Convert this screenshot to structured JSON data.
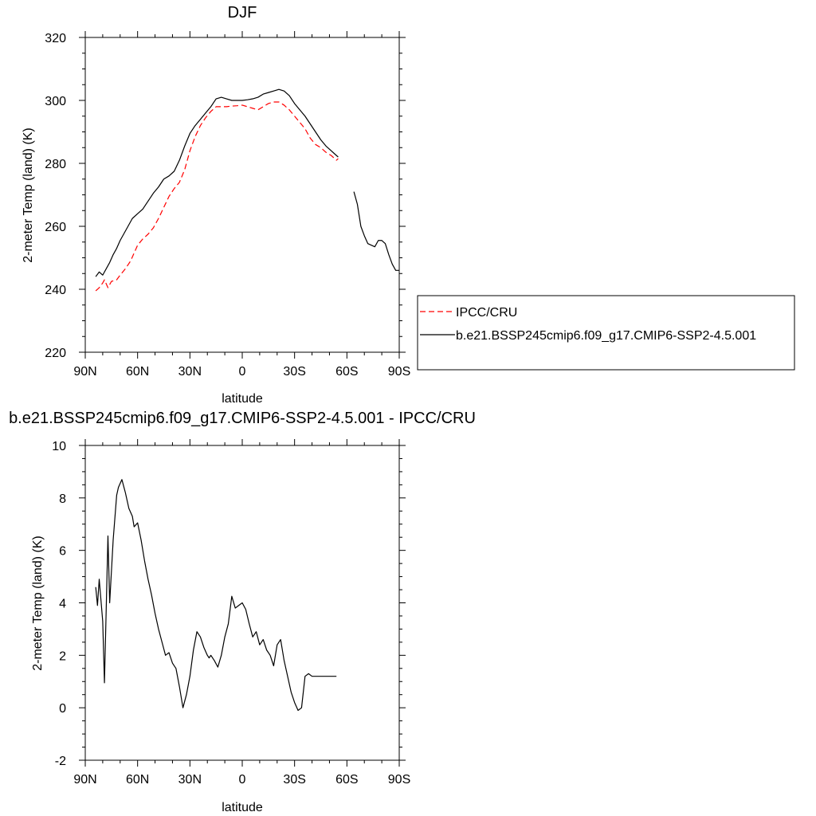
{
  "chart_data": [
    {
      "type": "line",
      "title": "DJF",
      "xlabel": "latitude",
      "ylabel": "2-meter Temp (land) (K)",
      "xlim": [
        -90,
        90
      ],
      "ylim": [
        220,
        320
      ],
      "x_ticks": [
        -90,
        -60,
        -30,
        0,
        30,
        60,
        90
      ],
      "x_tick_labels": [
        "90N",
        "60N",
        "30N",
        "0",
        "30S",
        "60S",
        "90S"
      ],
      "y_ticks": [
        220,
        240,
        260,
        280,
        300,
        320
      ],
      "y_tick_labels": [
        "220",
        "240",
        "260",
        "280",
        "300",
        "320"
      ],
      "legend_position": "right",
      "grid": false,
      "series": [
        {
          "name": "IPCC/CRU",
          "color": "#ff0000",
          "dash": "dashed",
          "x": [
            -84,
            -82,
            -80,
            -79,
            -77,
            -75,
            -72,
            -70,
            -67,
            -64,
            -62,
            -60,
            -57,
            -54,
            -51,
            -48,
            -45,
            -42,
            -39,
            -36,
            -33,
            -30,
            -27,
            -24,
            -21,
            -18,
            -15,
            -12,
            -9,
            -6,
            -3,
            0,
            3,
            6,
            9,
            12,
            15,
            18,
            21,
            24,
            27,
            30,
            33,
            36,
            39,
            42,
            45,
            48,
            51,
            54,
            55
          ],
          "y": [
            239.5,
            240.5,
            242,
            243,
            240.5,
            242.5,
            243,
            244.5,
            246.5,
            249,
            251.5,
            254,
            256,
            257.5,
            259.5,
            262.5,
            266,
            269.5,
            272,
            274,
            278,
            284,
            288.5,
            292,
            294.5,
            296.5,
            298,
            298,
            298,
            298.2,
            298.3,
            298.5,
            298,
            297.5,
            297,
            298,
            299,
            299.5,
            299.5,
            298.5,
            297,
            295,
            293,
            291,
            288,
            286,
            285,
            283.5,
            282.5,
            281,
            281.5
          ]
        },
        {
          "name": "b.e21.BSSP245cmip6.f09_g17.CMIP6-SSP2-4.5.001",
          "color": "#000000",
          "dash": "solid",
          "x": [
            -84,
            -82,
            -80,
            -78,
            -76,
            -74,
            -72,
            -70,
            -68,
            -66,
            -63,
            -60,
            -57,
            -54,
            -51,
            -48,
            -45,
            -42,
            -39,
            -36,
            -33,
            -30,
            -27,
            -24,
            -21,
            -18,
            -15,
            -12,
            -9,
            -6,
            -3,
            0,
            3,
            6,
            9,
            12,
            15,
            18,
            21,
            24,
            27,
            30,
            33,
            36,
            39,
            42,
            45,
            48,
            51,
            54,
            55,
            null,
            64,
            66,
            68,
            70,
            72,
            74,
            76,
            78,
            80,
            82,
            84,
            86,
            88,
            90
          ],
          "y": [
            244,
            245.5,
            244.5,
            246.5,
            248.5,
            251,
            253,
            255.5,
            257.5,
            259.5,
            262.5,
            264,
            265.5,
            268,
            270.5,
            272.5,
            275,
            276,
            277.5,
            281,
            285.5,
            289.5,
            292,
            294,
            296,
            298,
            300.5,
            301,
            300.5,
            300,
            300,
            300,
            300.2,
            300.5,
            301,
            302,
            302.5,
            303,
            303.5,
            303,
            301.5,
            299,
            297,
            295,
            292.5,
            290,
            287.5,
            285.5,
            284,
            282.5,
            282,
            null,
            271,
            267,
            260,
            257,
            254.5,
            254,
            253.5,
            255.5,
            255.5,
            254.5,
            251,
            248,
            246,
            246
          ]
        }
      ]
    },
    {
      "type": "line",
      "title": "b.e21.BSSP245cmip6.f09_g17.CMIP6-SSP2-4.5.001 - IPCC/CRU",
      "xlabel": "latitude",
      "ylabel": "2-meter Temp (land) (K)",
      "xlim": [
        -90,
        90
      ],
      "ylim": [
        -2,
        10
      ],
      "x_ticks": [
        -90,
        -60,
        -30,
        0,
        30,
        60,
        90
      ],
      "x_tick_labels": [
        "90N",
        "60N",
        "30N",
        "0",
        "30S",
        "60S",
        "90S"
      ],
      "y_ticks": [
        -2,
        0,
        2,
        4,
        6,
        8,
        10
      ],
      "y_tick_labels": [
        "-2",
        "0",
        "2",
        "4",
        "6",
        "8",
        "10"
      ],
      "grid": false,
      "series": [
        {
          "color": "#000000",
          "dash": "solid",
          "x": [
            -84,
            -83,
            -82,
            -80,
            -79,
            -77,
            -76,
            -74,
            -72,
            -71,
            -69,
            -67,
            -65,
            -63,
            -62,
            -60,
            -58,
            -56,
            -54,
            -52,
            -50,
            -48,
            -46,
            -44,
            -42,
            -40,
            -38,
            -36,
            -34,
            -32,
            -30,
            -28,
            -26,
            -24,
            -22,
            -20,
            -19,
            -18,
            -16,
            -14,
            -12,
            -10,
            -8,
            -6,
            -4,
            -2,
            0,
            2,
            4,
            6,
            8,
            10,
            12,
            14,
            16,
            18,
            20,
            22,
            24,
            26,
            28,
            30,
            32,
            34,
            36,
            38,
            40,
            42,
            44,
            46,
            48,
            50,
            51,
            52,
            53,
            54
          ],
          "y": [
            4.6,
            3.9,
            4.9,
            3.3,
            0.95,
            6.55,
            4.0,
            6.4,
            8.1,
            8.4,
            8.7,
            8.2,
            7.6,
            7.3,
            6.9,
            7.05,
            6.4,
            5.6,
            4.9,
            4.3,
            3.6,
            3.0,
            2.5,
            2.0,
            2.1,
            1.7,
            1.5,
            0.8,
            0.0,
            0.5,
            1.2,
            2.2,
            2.9,
            2.7,
            2.3,
            2.0,
            1.9,
            2.0,
            1.8,
            1.55,
            2.0,
            2.7,
            3.2,
            4.25,
            3.8,
            3.9,
            4.0,
            3.75,
            3.2,
            2.7,
            2.9,
            2.4,
            2.6,
            2.2,
            2.0,
            1.6,
            2.4,
            2.6,
            1.8,
            1.2,
            0.6,
            0.2,
            -0.1,
            0.0,
            1.2,
            1.3,
            1.2,
            1.2,
            1.2,
            1.2,
            1.2,
            1.2,
            1.2,
            1.2,
            1.2,
            1.2
          ]
        }
      ]
    }
  ]
}
